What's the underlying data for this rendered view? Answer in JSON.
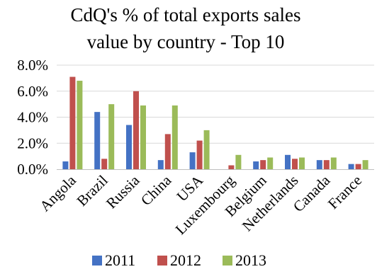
{
  "chart_data": {
    "type": "bar",
    "title_lines": [
      "CdQ's % of total exports sales",
      "value by country - Top 10"
    ],
    "categories": [
      "Angola",
      "Brazil",
      "Russia",
      "China",
      "USA",
      "Luxembourg",
      "Belgium",
      "Netherlands",
      "Canada",
      "France"
    ],
    "series": [
      {
        "name": "2011",
        "color": "#4472c4",
        "values": [
          0.6,
          4.4,
          3.4,
          0.7,
          1.3,
          0.0,
          0.6,
          1.1,
          0.7,
          0.4
        ]
      },
      {
        "name": "2012",
        "color": "#c0504d",
        "values": [
          7.1,
          0.8,
          6.0,
          2.7,
          2.2,
          0.3,
          0.7,
          0.8,
          0.7,
          0.4
        ]
      },
      {
        "name": "2013",
        "color": "#9bbb59",
        "values": [
          6.8,
          5.0,
          4.9,
          4.9,
          3.0,
          1.1,
          0.9,
          0.9,
          0.9,
          0.7
        ]
      }
    ],
    "ylim": [
      0,
      8
    ],
    "yticks": [
      0,
      2,
      4,
      6,
      8
    ],
    "ytick_labels": [
      "0.0%",
      "2.0%",
      "4.0%",
      "6.0%",
      "8.0%"
    ],
    "grid": true,
    "legend_position": "bottom"
  }
}
